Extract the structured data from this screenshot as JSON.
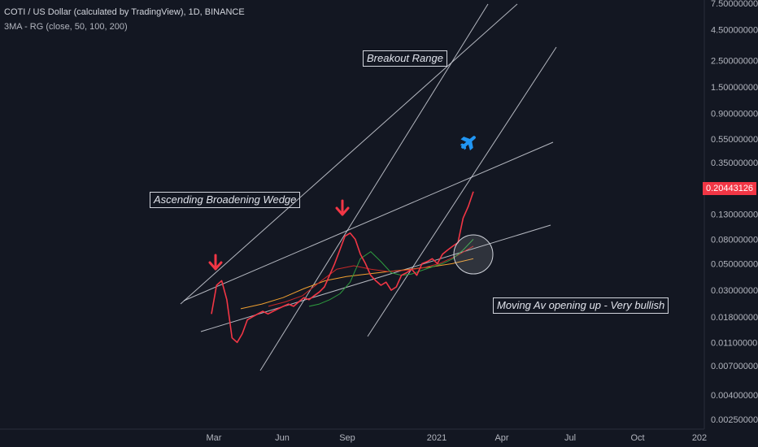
{
  "header": {
    "title": "COTI / US Dollar (calculated by TradingView), 1D, BINANCE",
    "indicator": "3MA - RG (close, 50, 100, 200)"
  },
  "price_tag": "0.20443126",
  "annotations": {
    "breakout": "Breakout Range",
    "wedge": "Ascending Broadening Wedge",
    "moving_av": "Moving Av opening up - Very bullish"
  },
  "icons": [
    "arrow-down-icon",
    "arrow-down-icon",
    "airplane-icon"
  ],
  "colors": {
    "background": "#131722",
    "price": "#f23645",
    "ma50": "#2e9c3f",
    "ma100": "#c62828",
    "ma200": "#f0a030",
    "trendline": "#d1d4dc",
    "airplane": "#2196f3"
  },
  "chart_data": {
    "type": "line",
    "scale": "log",
    "x_ticks": [
      "Mar",
      "Jun",
      "Sep",
      "2021",
      "Apr",
      "Jul",
      "Oct",
      "202"
    ],
    "y_ticks": [
      "7.50000000",
      "4.50000000",
      "2.50000000",
      "1.50000000",
      "0.90000000",
      "0.55000000",
      "0.35000000",
      "0.20443126",
      "0.13000000",
      "0.08000000",
      "0.05000000",
      "0.03000000",
      "0.01800000",
      "0.01100000",
      "0.00700000",
      "0.00400000",
      "0.00250000"
    ],
    "series": [
      {
        "values": [
          0.019,
          0.033,
          0.036,
          0.025,
          0.012,
          0.011,
          0.013,
          0.017,
          0.018,
          0.019,
          0.02,
          0.019,
          0.02,
          0.021,
          0.022,
          0.023,
          0.022,
          0.024,
          0.026,
          0.025,
          0.027,
          0.029,
          0.032,
          0.04,
          0.05,
          0.065,
          0.085,
          0.09,
          0.08,
          0.06,
          0.05,
          0.04,
          0.036,
          0.033,
          0.035,
          0.03,
          0.032,
          0.04,
          0.042,
          0.045,
          0.04,
          0.05,
          0.052,
          0.055,
          0.05,
          0.06,
          0.065,
          0.07,
          0.075,
          0.12,
          0.15,
          0.2
        ]
      },
      {
        "values": [
          0.022,
          0.023,
          0.025,
          0.028,
          0.035,
          0.055,
          0.063,
          0.052,
          0.042,
          0.04,
          0.041,
          0.044,
          0.047,
          0.05,
          0.055,
          0.065,
          0.08
        ]
      },
      {
        "values": [
          0.022,
          0.024,
          0.027,
          0.035,
          0.045,
          0.048,
          0.045,
          0.043,
          0.044,
          0.046,
          0.05,
          0.058,
          0.07
        ]
      },
      {
        "values": [
          0.021,
          0.023,
          0.026,
          0.031,
          0.036,
          0.039,
          0.041,
          0.043,
          0.045,
          0.047,
          0.05,
          0.055
        ]
      }
    ]
  }
}
